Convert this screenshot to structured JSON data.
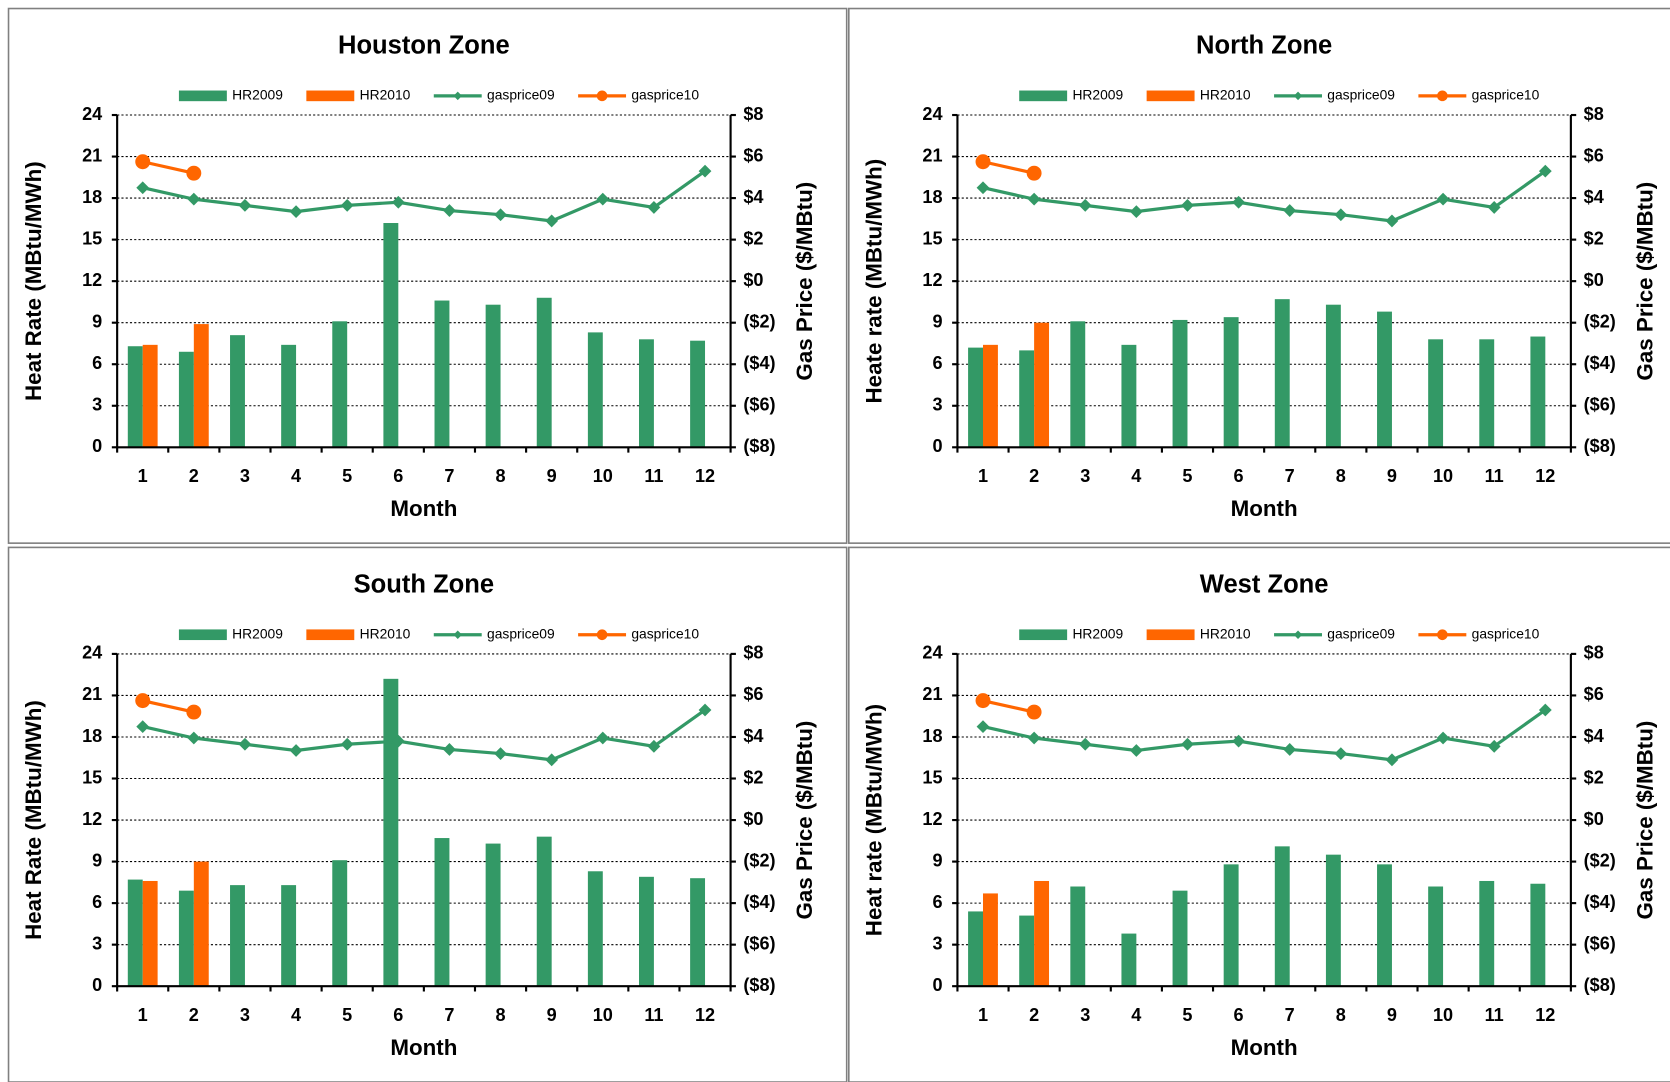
{
  "chart_data": [
    {
      "type": "bar",
      "title": "Houston Zone",
      "xlabel": "Month",
      "ylabel": "Heat Rate (MBtu/MWh)",
      "y2label": "Gas Price ($/MBtu)",
      "categories": [
        "1",
        "2",
        "3",
        "4",
        "5",
        "6",
        "7",
        "8",
        "9",
        "10",
        "11",
        "12"
      ],
      "ylim": [
        0,
        24
      ],
      "yticks": [
        0,
        3,
        6,
        9,
        12,
        15,
        18,
        21,
        24
      ],
      "y2lim": [
        -8,
        8
      ],
      "y2ticks": [
        {
          "value": -8,
          "label": "($8)"
        },
        {
          "value": -6,
          "label": "($6)"
        },
        {
          "value": -4,
          "label": "($4)"
        },
        {
          "value": -2,
          "label": "($2)"
        },
        {
          "value": 0,
          "label": "$0"
        },
        {
          "value": 2,
          "label": "$2"
        },
        {
          "value": 4,
          "label": "$4"
        },
        {
          "value": 6,
          "label": "$6"
        },
        {
          "value": 8,
          "label": "$8"
        }
      ],
      "grid": true,
      "legend": "top",
      "series": [
        {
          "name": "HR2009",
          "type": "bar",
          "color": "#339966",
          "values": [
            7.3,
            6.9,
            8.1,
            7.4,
            9.1,
            16.2,
            10.6,
            10.3,
            10.8,
            8.3,
            7.8,
            7.7
          ]
        },
        {
          "name": "HR2010",
          "type": "bar",
          "color": "#ff6600",
          "values": [
            7.4,
            8.9,
            null,
            null,
            null,
            null,
            null,
            null,
            null,
            null,
            null,
            null
          ]
        },
        {
          "name": "gasprice09",
          "type": "line",
          "axis": "y2",
          "marker": "diamond",
          "color": "#339966",
          "values": [
            4.5,
            3.95,
            3.65,
            3.35,
            3.65,
            3.8,
            3.4,
            3.2,
            2.9,
            3.95,
            3.55,
            5.3
          ]
        },
        {
          "name": "gasprice10",
          "type": "line",
          "axis": "y2",
          "marker": "circle",
          "color": "#ff6600",
          "values": [
            5.75,
            5.2,
            null,
            null,
            null,
            null,
            null,
            null,
            null,
            null,
            null,
            null
          ]
        }
      ]
    },
    {
      "type": "bar",
      "title": "North Zone",
      "xlabel": "Month",
      "ylabel": "Heate rate (MBtu/MWh)",
      "y2label": "Gas Price ($/MBtu)",
      "categories": [
        "1",
        "2",
        "3",
        "4",
        "5",
        "6",
        "7",
        "8",
        "9",
        "10",
        "11",
        "12"
      ],
      "ylim": [
        0,
        24
      ],
      "yticks": [
        0,
        3,
        6,
        9,
        12,
        15,
        18,
        21,
        24
      ],
      "y2lim": [
        -8,
        8
      ],
      "y2ticks": [
        {
          "value": -8,
          "label": "($8)"
        },
        {
          "value": -6,
          "label": "($6)"
        },
        {
          "value": -4,
          "label": "($4)"
        },
        {
          "value": -2,
          "label": "($2)"
        },
        {
          "value": 0,
          "label": "$0"
        },
        {
          "value": 2,
          "label": "$2"
        },
        {
          "value": 4,
          "label": "$4"
        },
        {
          "value": 6,
          "label": "$6"
        },
        {
          "value": 8,
          "label": "$8"
        }
      ],
      "grid": true,
      "legend": "top",
      "series": [
        {
          "name": "HR2009",
          "type": "bar",
          "color": "#339966",
          "values": [
            7.2,
            7.0,
            9.1,
            7.4,
            9.2,
            9.4,
            10.7,
            10.3,
            9.8,
            7.8,
            7.8,
            8.0
          ]
        },
        {
          "name": "HR2010",
          "type": "bar",
          "color": "#ff6600",
          "values": [
            7.4,
            9.0,
            null,
            null,
            null,
            null,
            null,
            null,
            null,
            null,
            null,
            null
          ]
        },
        {
          "name": "gasprice09",
          "type": "line",
          "axis": "y2",
          "marker": "diamond",
          "color": "#339966",
          "values": [
            4.5,
            3.95,
            3.65,
            3.35,
            3.65,
            3.8,
            3.4,
            3.2,
            2.9,
            3.95,
            3.55,
            5.3
          ]
        },
        {
          "name": "gasprice10",
          "type": "line",
          "axis": "y2",
          "marker": "circle",
          "color": "#ff6600",
          "values": [
            5.75,
            5.2,
            null,
            null,
            null,
            null,
            null,
            null,
            null,
            null,
            null,
            null
          ]
        }
      ]
    },
    {
      "type": "bar",
      "title": "South Zone",
      "xlabel": "Month",
      "ylabel": "Heat Rate (MBtu/MWh)",
      "y2label": "Gas Price ($/MBtu)",
      "categories": [
        "1",
        "2",
        "3",
        "4",
        "5",
        "6",
        "7",
        "8",
        "9",
        "10",
        "11",
        "12"
      ],
      "ylim": [
        0,
        24
      ],
      "yticks": [
        0,
        3,
        6,
        9,
        12,
        15,
        18,
        21,
        24
      ],
      "y2lim": [
        -8,
        8
      ],
      "y2ticks": [
        {
          "value": -8,
          "label": "($8)"
        },
        {
          "value": -6,
          "label": "($6)"
        },
        {
          "value": -4,
          "label": "($4)"
        },
        {
          "value": -2,
          "label": "($2)"
        },
        {
          "value": 0,
          "label": "$0"
        },
        {
          "value": 2,
          "label": "$2"
        },
        {
          "value": 4,
          "label": "$4"
        },
        {
          "value": 6,
          "label": "$6"
        },
        {
          "value": 8,
          "label": "$8"
        }
      ],
      "grid": true,
      "legend": "top",
      "series": [
        {
          "name": "HR2009",
          "type": "bar",
          "color": "#339966",
          "values": [
            7.7,
            6.9,
            7.3,
            7.3,
            9.1,
            22.2,
            10.7,
            10.3,
            10.8,
            8.3,
            7.9,
            7.8
          ]
        },
        {
          "name": "HR2010",
          "type": "bar",
          "color": "#ff6600",
          "values": [
            7.6,
            9.0,
            null,
            null,
            null,
            null,
            null,
            null,
            null,
            null,
            null,
            null
          ]
        },
        {
          "name": "gasprice09",
          "type": "line",
          "axis": "y2",
          "marker": "diamond",
          "color": "#339966",
          "values": [
            4.5,
            3.95,
            3.65,
            3.35,
            3.65,
            3.8,
            3.4,
            3.2,
            2.9,
            3.95,
            3.55,
            5.3
          ]
        },
        {
          "name": "gasprice10",
          "type": "line",
          "axis": "y2",
          "marker": "circle",
          "color": "#ff6600",
          "values": [
            5.75,
            5.2,
            null,
            null,
            null,
            null,
            null,
            null,
            null,
            null,
            null,
            null
          ]
        }
      ]
    },
    {
      "type": "bar",
      "title": "West Zone",
      "xlabel": "Month",
      "ylabel": "Heat rate (MBtu/MWh)",
      "y2label": "Gas Price ($/MBtu)",
      "categories": [
        "1",
        "2",
        "3",
        "4",
        "5",
        "6",
        "7",
        "8",
        "9",
        "10",
        "11",
        "12"
      ],
      "ylim": [
        0,
        24
      ],
      "yticks": [
        0,
        3,
        6,
        9,
        12,
        15,
        18,
        21,
        24
      ],
      "y2lim": [
        -8,
        8
      ],
      "y2ticks": [
        {
          "value": -8,
          "label": "($8)"
        },
        {
          "value": -6,
          "label": "($6)"
        },
        {
          "value": -4,
          "label": "($4)"
        },
        {
          "value": -2,
          "label": "($2)"
        },
        {
          "value": 0,
          "label": "$0"
        },
        {
          "value": 2,
          "label": "$2"
        },
        {
          "value": 4,
          "label": "$4"
        },
        {
          "value": 6,
          "label": "$6"
        },
        {
          "value": 8,
          "label": "$8"
        }
      ],
      "grid": true,
      "legend": "top",
      "series": [
        {
          "name": "HR2009",
          "type": "bar",
          "color": "#339966",
          "values": [
            5.4,
            5.1,
            7.2,
            3.8,
            6.9,
            8.8,
            10.1,
            9.5,
            8.8,
            7.2,
            7.6,
            7.4
          ]
        },
        {
          "name": "HR2010",
          "type": "bar",
          "color": "#ff6600",
          "values": [
            6.7,
            7.6,
            null,
            null,
            null,
            null,
            null,
            null,
            null,
            null,
            null,
            null
          ]
        },
        {
          "name": "gasprice09",
          "type": "line",
          "axis": "y2",
          "marker": "diamond",
          "color": "#339966",
          "values": [
            4.5,
            3.95,
            3.65,
            3.35,
            3.65,
            3.8,
            3.4,
            3.2,
            2.9,
            3.95,
            3.55,
            5.3
          ]
        },
        {
          "name": "gasprice10",
          "type": "line",
          "axis": "y2",
          "marker": "circle",
          "color": "#ff6600",
          "values": [
            5.75,
            5.2,
            null,
            null,
            null,
            null,
            null,
            null,
            null,
            null,
            null,
            null
          ]
        }
      ]
    }
  ]
}
